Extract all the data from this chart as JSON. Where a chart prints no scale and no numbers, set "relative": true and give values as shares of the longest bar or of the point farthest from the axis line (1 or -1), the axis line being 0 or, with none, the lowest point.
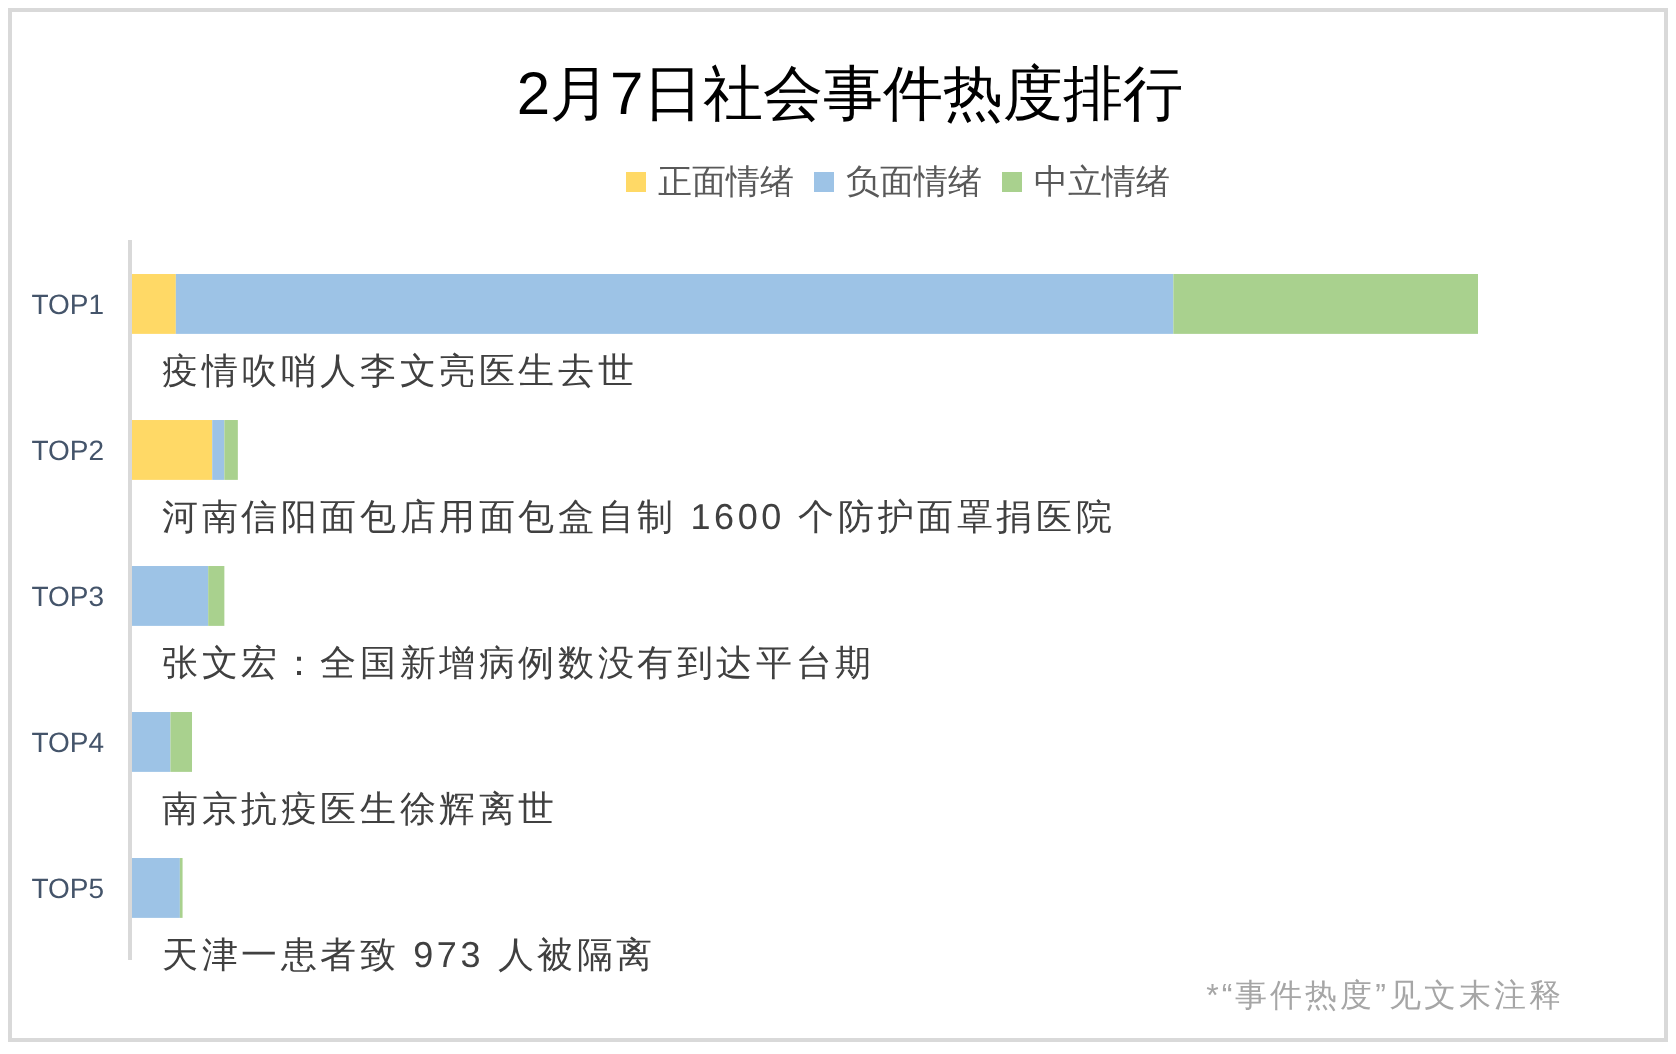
{
  "chart_data": {
    "type": "bar",
    "title": "2月7日社会事件热度排行",
    "orientation": "horizontal",
    "stacked": true,
    "relative": true,
    "legend": "top",
    "categories": [
      "TOP1",
      "TOP2",
      "TOP3",
      "TOP4",
      "TOP5"
    ],
    "series": [
      {
        "name": "正面情绪",
        "color": "#ffd966",
        "values": [
          0.034,
          0.061,
          0,
          0,
          0
        ]
      },
      {
        "name": "负面情绪",
        "color": "#9dc3e6",
        "values": [
          0.74,
          0.009,
          0.058,
          0.03,
          0.037
        ]
      },
      {
        "name": "中立情绪",
        "color": "#a9d18e",
        "values": [
          0.226,
          0.01,
          0.012,
          0.016,
          0.002
        ]
      }
    ],
    "annotations": [
      "疫情吹哨人李文亮医生去世",
      "河南信阳面包店用面包盒自制 1600 个防护面罩捐医院",
      "张文宏：全国新增病例数没有到达平台期",
      "南京抗疫医生徐辉离世",
      "天津一患者致 973 人被隔离",
      "*“事件热度”见文末注释"
    ]
  }
}
